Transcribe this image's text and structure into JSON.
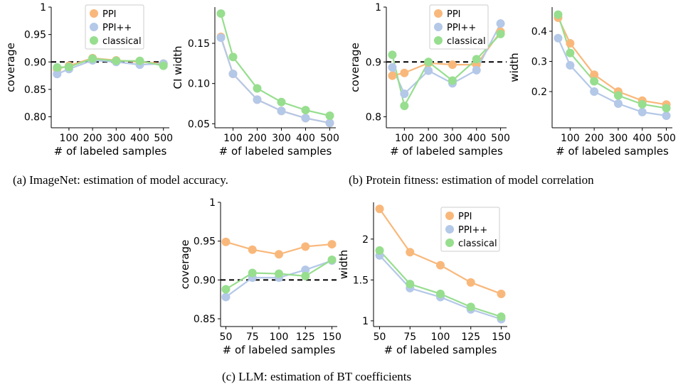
{
  "captions": {
    "a": "(a) ImageNet: estimation of model accuracy.",
    "b": "(b) Protein fitness: estimation of model correlation",
    "c": "(c) LLM: estimation of BT coefficients"
  },
  "colors": {
    "PPI": "#f9b87b",
    "PPI++": "#b4c8e8",
    "classical": "#97de8f",
    "reference": "#000000"
  },
  "chart_data": [
    {
      "id": "a1",
      "type": "line",
      "xlabel": "# of labeled samples",
      "ylabel": "coverage",
      "x": [
        50,
        100,
        200,
        300,
        400,
        500
      ],
      "xticks": [
        100,
        200,
        300,
        400,
        500
      ],
      "xlim": [
        25,
        525
      ],
      "yticks": [
        0.8,
        0.85,
        0.9,
        0.95,
        1
      ],
      "ytick_labels": [
        "0.80",
        "0.85",
        "0.90",
        "0.95",
        "1"
      ],
      "ylim": [
        0.78,
        1.0
      ],
      "reference_line": 0.9,
      "legend": "top-center",
      "series": [
        {
          "name": "PPI",
          "values": [
            0.887,
            0.893,
            0.907,
            0.903,
            0.9,
            0.897
          ]
        },
        {
          "name": "PPI++",
          "values": [
            0.878,
            0.887,
            0.903,
            0.9,
            0.895,
            0.897
          ]
        },
        {
          "name": "classical",
          "values": [
            0.89,
            0.891,
            0.906,
            0.902,
            0.902,
            0.893
          ]
        }
      ]
    },
    {
      "id": "a2",
      "type": "line",
      "xlabel": "# of labeled samples",
      "ylabel": "CI width",
      "x": [
        50,
        100,
        200,
        300,
        400,
        500
      ],
      "xticks": [
        100,
        200,
        300,
        400,
        500
      ],
      "xlim": [
        25,
        525
      ],
      "yticks": [
        0.05,
        0.1,
        0.15
      ],
      "ytick_labels": [
        "0.05",
        "0.10",
        "0.15"
      ],
      "ylim": [
        0.045,
        0.195
      ],
      "series": [
        {
          "name": "PPI",
          "values": [
            0.158,
            0.112,
            0.08,
            0.066,
            0.057,
            0.051
          ]
        },
        {
          "name": "PPI++",
          "values": [
            0.157,
            0.112,
            0.08,
            0.066,
            0.057,
            0.051
          ]
        },
        {
          "name": "classical",
          "values": [
            0.187,
            0.133,
            0.094,
            0.077,
            0.067,
            0.06
          ]
        }
      ]
    },
    {
      "id": "b1",
      "type": "line",
      "xlabel": "# of labeled samples",
      "ylabel": "coverage",
      "x": [
        50,
        100,
        200,
        300,
        400,
        500
      ],
      "xticks": [
        100,
        200,
        300,
        400,
        500
      ],
      "xlim": [
        25,
        525
      ],
      "yticks": [
        0.8,
        0.9,
        1
      ],
      "ytick_labels": [
        "0.8",
        "0.9",
        "1"
      ],
      "ylim": [
        0.78,
        1.0
      ],
      "reference_line": 0.9,
      "legend": "top-center",
      "series": [
        {
          "name": "PPI",
          "values": [
            0.875,
            0.88,
            0.898,
            0.895,
            0.895,
            0.955
          ]
        },
        {
          "name": "PPI++",
          "values": [
            0.89,
            0.842,
            0.884,
            0.861,
            0.885,
            0.97
          ]
        },
        {
          "name": "classical",
          "values": [
            0.913,
            0.82,
            0.9,
            0.866,
            0.905,
            0.951
          ]
        }
      ]
    },
    {
      "id": "b2",
      "type": "line",
      "xlabel": "# of labeled samples",
      "ylabel": "width",
      "x": [
        50,
        100,
        200,
        300,
        400,
        500
      ],
      "xticks": [
        100,
        200,
        300,
        400,
        500
      ],
      "xlim": [
        25,
        525
      ],
      "yticks": [
        0.2,
        0.3,
        0.4
      ],
      "ytick_labels": [
        "0.2",
        "0.3",
        "0.4"
      ],
      "ylim": [
        0.08,
        0.48
      ],
      "series": [
        {
          "name": "PPI",
          "values": [
            0.445,
            0.36,
            0.256,
            0.2,
            0.17,
            0.157
          ]
        },
        {
          "name": "PPI++",
          "values": [
            0.377,
            0.287,
            0.2,
            0.16,
            0.132,
            0.12
          ]
        },
        {
          "name": "classical",
          "values": [
            0.455,
            0.328,
            0.234,
            0.187,
            0.158,
            0.145
          ]
        }
      ]
    },
    {
      "id": "c1",
      "type": "line",
      "xlabel": "# of labeled samples",
      "ylabel": "coverage",
      "x": [
        50,
        75,
        100,
        125,
        150
      ],
      "xticks": [
        50,
        75,
        100,
        125,
        150
      ],
      "xlim": [
        45,
        155
      ],
      "yticks": [
        0.85,
        0.9,
        0.95,
        1
      ],
      "ytick_labels": [
        "0.85",
        "0.90",
        "0.95",
        "1"
      ],
      "ylim": [
        0.84,
        1.0
      ],
      "reference_line": 0.9,
      "series": [
        {
          "name": "PPI",
          "values": [
            0.949,
            0.939,
            0.933,
            0.943,
            0.946
          ]
        },
        {
          "name": "PPI++",
          "values": [
            0.878,
            0.903,
            0.903,
            0.913,
            0.925
          ]
        },
        {
          "name": "classical",
          "values": [
            0.888,
            0.909,
            0.908,
            0.905,
            0.926
          ]
        }
      ]
    },
    {
      "id": "c2",
      "type": "line",
      "xlabel": "# of labeled samples",
      "ylabel": "width",
      "x": [
        50,
        75,
        100,
        125,
        150
      ],
      "xticks": [
        50,
        75,
        100,
        125,
        150
      ],
      "xlim": [
        45,
        155
      ],
      "yticks": [
        1,
        1.5,
        2
      ],
      "ytick_labels": [
        "1",
        "1.5",
        "2"
      ],
      "ylim": [
        0.93,
        2.45
      ],
      "legend": "top-right",
      "series": [
        {
          "name": "PPI",
          "values": [
            2.37,
            1.84,
            1.68,
            1.47,
            1.33
          ]
        },
        {
          "name": "PPI++",
          "values": [
            1.8,
            1.4,
            1.29,
            1.14,
            1.02
          ]
        },
        {
          "name": "classical",
          "values": [
            1.86,
            1.45,
            1.33,
            1.17,
            1.05
          ]
        }
      ]
    }
  ]
}
